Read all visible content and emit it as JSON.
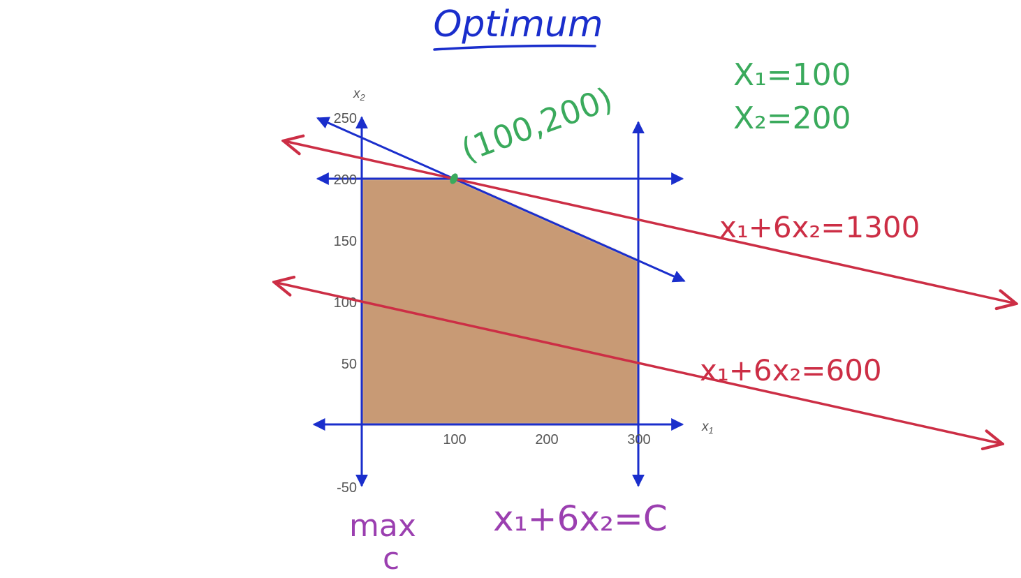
{
  "title": "Optimum",
  "chart_data": {
    "type": "line",
    "xlabel": "x1",
    "ylabel": "x2",
    "x_ticks": [
      "100",
      "200",
      "300"
    ],
    "y_ticks": [
      "250",
      "200",
      "150",
      "100",
      "50",
      "-50"
    ],
    "xlim": [
      -50,
      350
    ],
    "ylim": [
      -60,
      260
    ],
    "feasible_region": [
      [
        0,
        0
      ],
      [
        0,
        200
      ],
      [
        100,
        200
      ],
      [
        300,
        133.3
      ],
      [
        300,
        0
      ]
    ],
    "constraints": [
      {
        "kind": "vertical",
        "x": 0
      },
      {
        "kind": "vertical",
        "x": 300
      },
      {
        "kind": "horizontal",
        "y": 0
      },
      {
        "kind": "horizontal",
        "y": 200
      },
      {
        "kind": "line",
        "a": 1,
        "b": 3,
        "c": 700
      }
    ],
    "objective_lines": [
      {
        "a": 1,
        "b": 6,
        "c": 1300
      },
      {
        "a": 1,
        "b": 6,
        "c": 600
      }
    ],
    "optimum_point": {
      "x": 100,
      "y": 200
    }
  },
  "annotations": {
    "optimum_label": "(100,200)",
    "solution_x1": "X₁=100",
    "solution_x2": "X₂=200",
    "objective_1300": "x₁+6x₂=1300",
    "objective_600": "x₁+6x₂=600",
    "objective_general": "x₁+6x₂=C",
    "max_word": "max",
    "max_var": "c"
  },
  "colors": {
    "constraint": "#1a2ecc",
    "objective": "#cc2e45",
    "feasible": "#c89a74",
    "solution": "#3aaa5c",
    "objective_text": "#9b3fb0"
  }
}
